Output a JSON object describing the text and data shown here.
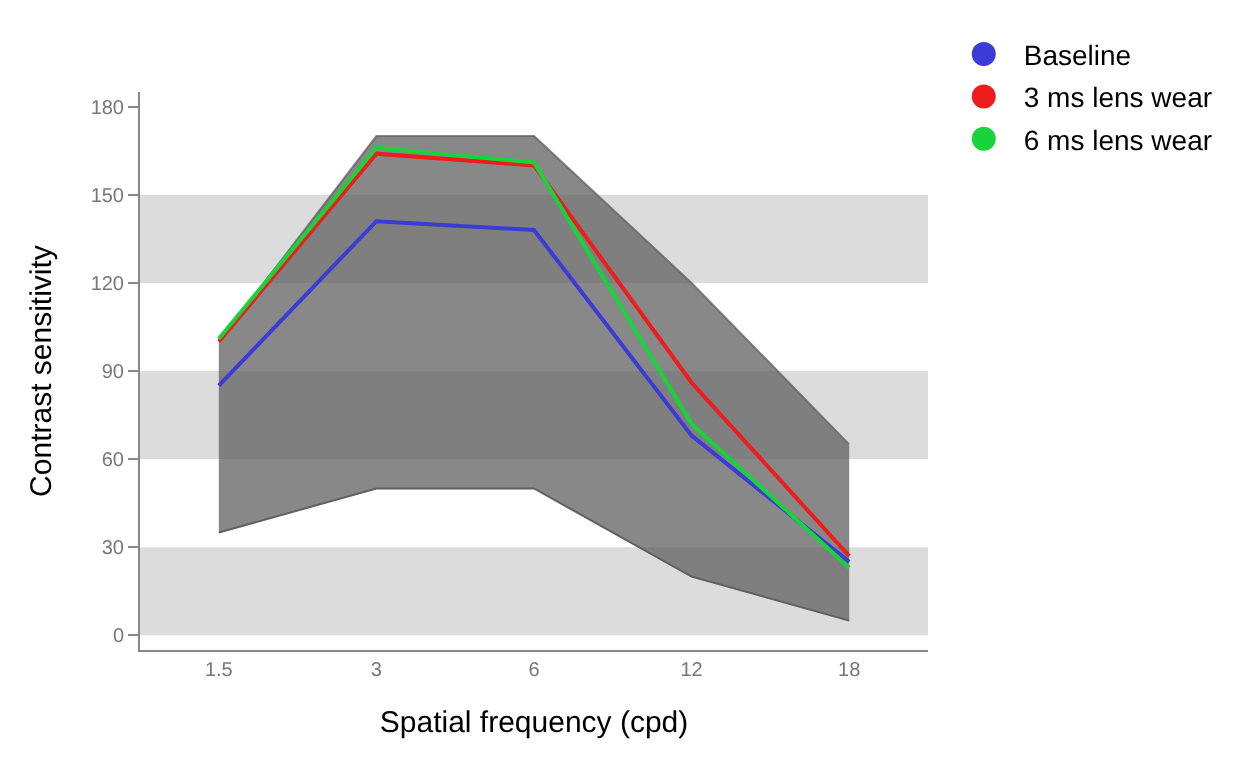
{
  "chart_data": {
    "type": "line",
    "xlabel": "Spatial frequency (cpd)",
    "ylabel": "Contrast sensitivity",
    "categories": [
      "1.5",
      "3",
      "6",
      "12",
      "18"
    ],
    "ylim": [
      -5,
      185
    ],
    "yticks": [
      0,
      30,
      60,
      90,
      120,
      150,
      180
    ],
    "bands": [
      {
        "axis": "y",
        "from": 0,
        "to": 30,
        "color": "#dcdcdc"
      },
      {
        "axis": "y",
        "from": 60,
        "to": 90,
        "color": "#dcdcdc"
      },
      {
        "axis": "y",
        "from": 120,
        "to": 150,
        "color": "#dcdcdc"
      }
    ],
    "legend": "top right",
    "series": [
      {
        "type": "line",
        "color": "#606060",
        "values": [
          35,
          50,
          50,
          20,
          5
        ]
      },
      {
        "type": "area",
        "color": "#606060",
        "values": [
          100,
          170,
          170,
          120,
          65
        ]
      },
      {
        "name": "Baseline",
        "color": "#3b3bd6",
        "values": [
          85,
          141,
          138,
          68,
          25
        ]
      },
      {
        "name": "3 ms lens wear",
        "color": "#ee1c1c",
        "values": [
          100,
          164,
          160,
          86,
          27
        ]
      },
      {
        "name": "6 ms lens wear",
        "color": "#17d43a",
        "values": [
          101,
          166,
          161,
          72,
          23
        ]
      }
    ]
  }
}
